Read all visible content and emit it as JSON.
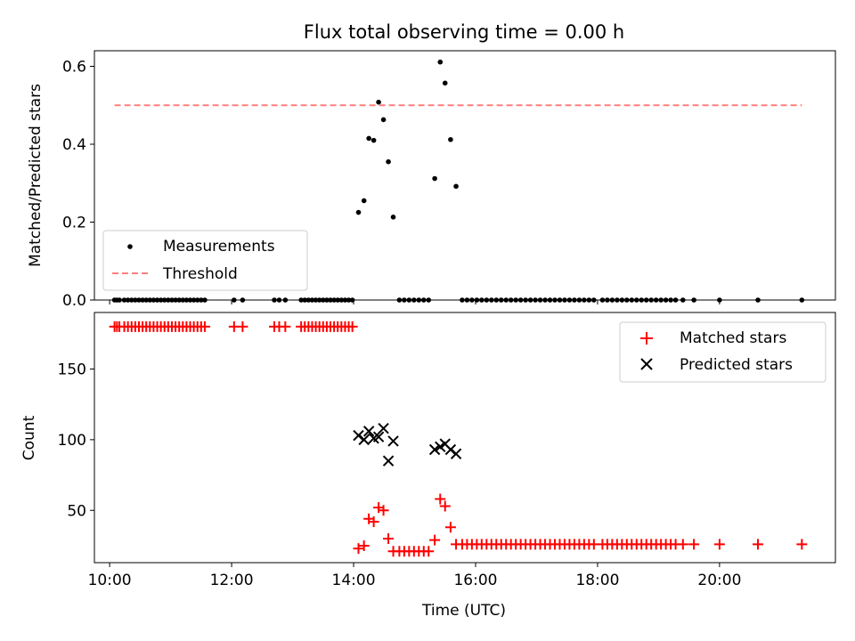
{
  "chart_data": [
    {
      "type": "scatter",
      "title": "Flux total observing time = 0.00 h",
      "xlabel": "",
      "ylabel": "Matched/Predicted stars",
      "xlim": [
        9.75,
        21.9
      ],
      "ylim": [
        0,
        0.64
      ],
      "yticks": [
        0.0,
        0.2,
        0.4,
        0.6
      ],
      "ytick_labels": [
        "0.0",
        "0.2",
        "0.4",
        "0.6"
      ],
      "legend_position": "lower-left",
      "series": [
        {
          "name": "Measurements",
          "kind": "scatter",
          "color": "#000000",
          "marker": "dot",
          "x": [
            10.08,
            10.12,
            10.16,
            10.24,
            10.3,
            10.36,
            10.42,
            10.48,
            10.54,
            10.6,
            10.66,
            10.72,
            10.78,
            10.84,
            10.9,
            10.96,
            11.02,
            11.08,
            11.14,
            11.2,
            11.26,
            11.32,
            11.38,
            11.44,
            11.5,
            11.56,
            12.04,
            12.18,
            12.7,
            12.78,
            12.88,
            13.14,
            13.2,
            13.26,
            13.32,
            13.38,
            13.44,
            13.5,
            13.56,
            13.62,
            13.68,
            13.74,
            13.8,
            13.86,
            13.92,
            13.98,
            14.08,
            14.17,
            14.25,
            14.33,
            14.41,
            14.49,
            14.57,
            14.65,
            14.75,
            14.83,
            14.91,
            14.99,
            15.07,
            15.15,
            15.23,
            15.33,
            15.42,
            15.5,
            15.59,
            15.68,
            15.78,
            15.86,
            15.94,
            16.02,
            16.1,
            16.18,
            16.26,
            16.34,
            16.42,
            16.5,
            16.58,
            16.66,
            16.74,
            16.82,
            16.9,
            16.98,
            17.06,
            17.14,
            17.22,
            17.3,
            17.38,
            17.46,
            17.54,
            17.62,
            17.7,
            17.78,
            17.86,
            17.94,
            18.08,
            18.16,
            18.24,
            18.32,
            18.4,
            18.48,
            18.56,
            18.64,
            18.72,
            18.8,
            18.88,
            18.96,
            19.04,
            19.12,
            19.2,
            19.28,
            19.4,
            19.58,
            20.0,
            20.63,
            21.35
          ],
          "y": [
            0,
            0,
            0,
            0,
            0,
            0,
            0,
            0,
            0,
            0,
            0,
            0,
            0,
            0,
            0,
            0,
            0,
            0,
            0,
            0,
            0,
            0,
            0,
            0,
            0,
            0,
            0,
            0,
            0,
            0,
            0,
            0,
            0,
            0,
            0,
            0,
            0,
            0,
            0,
            0,
            0,
            0,
            0,
            0,
            0,
            0,
            0.225,
            0.255,
            0.415,
            0.41,
            0.508,
            0.463,
            0.355,
            0.213,
            0,
            0,
            0,
            0,
            0,
            0,
            0,
            0.312,
            0.611,
            0.557,
            0.412,
            0.292,
            0,
            0,
            0,
            0,
            0,
            0,
            0,
            0,
            0,
            0,
            0,
            0,
            0,
            0,
            0,
            0,
            0,
            0,
            0,
            0,
            0,
            0,
            0,
            0,
            0,
            0,
            0,
            0,
            0,
            0,
            0,
            0,
            0,
            0,
            0,
            0,
            0,
            0,
            0,
            0,
            0,
            0,
            0,
            0,
            0,
            0,
            0,
            0,
            0
          ]
        },
        {
          "name": "Threshold",
          "kind": "line",
          "color": "#ff7f7f",
          "dashed": true,
          "x": [
            10.08,
            21.35
          ],
          "y": [
            0.5,
            0.5
          ]
        }
      ]
    },
    {
      "type": "scatter",
      "title": "",
      "xlabel": "Time (UTC)",
      "ylabel": "Count",
      "xlim": [
        9.75,
        21.9
      ],
      "ylim": [
        13,
        190
      ],
      "xticks": [
        10,
        12,
        14,
        16,
        18,
        20
      ],
      "xtick_labels": [
        "10:00",
        "12:00",
        "14:00",
        "16:00",
        "18:00",
        "20:00"
      ],
      "yticks": [
        50,
        100,
        150
      ],
      "ytick_labels": [
        "50",
        "100",
        "150"
      ],
      "legend_position": "top-right",
      "series": [
        {
          "name": "Matched stars",
          "kind": "scatter",
          "color": "#ff0000",
          "marker": "plus",
          "x": [
            10.08,
            10.12,
            10.16,
            10.24,
            10.3,
            10.36,
            10.42,
            10.48,
            10.54,
            10.6,
            10.66,
            10.72,
            10.78,
            10.84,
            10.9,
            10.96,
            11.02,
            11.08,
            11.14,
            11.2,
            11.26,
            11.32,
            11.38,
            11.44,
            11.5,
            11.56,
            12.04,
            12.18,
            12.7,
            12.78,
            12.88,
            13.14,
            13.2,
            13.26,
            13.32,
            13.38,
            13.44,
            13.5,
            13.56,
            13.62,
            13.68,
            13.74,
            13.8,
            13.86,
            13.92,
            13.98,
            14.08,
            14.17,
            14.25,
            14.33,
            14.41,
            14.49,
            14.57,
            14.65,
            14.75,
            14.83,
            14.91,
            14.99,
            15.07,
            15.15,
            15.23,
            15.33,
            15.42,
            15.5,
            15.59,
            15.68,
            15.78,
            15.86,
            15.94,
            16.02,
            16.1,
            16.18,
            16.26,
            16.34,
            16.42,
            16.5,
            16.58,
            16.66,
            16.74,
            16.82,
            16.9,
            16.98,
            17.06,
            17.14,
            17.22,
            17.3,
            17.38,
            17.46,
            17.54,
            17.62,
            17.7,
            17.78,
            17.86,
            17.94,
            18.08,
            18.16,
            18.24,
            18.32,
            18.4,
            18.48,
            18.56,
            18.64,
            18.72,
            18.8,
            18.88,
            18.96,
            19.04,
            19.12,
            19.2,
            19.28,
            19.4,
            19.58,
            20.0,
            20.63,
            21.35
          ],
          "y": [
            180,
            180,
            180,
            180,
            180,
            180,
            180,
            180,
            180,
            180,
            180,
            180,
            180,
            180,
            180,
            180,
            180,
            180,
            180,
            180,
            180,
            180,
            180,
            180,
            180,
            180,
            180,
            180,
            180,
            180,
            180,
            180,
            180,
            180,
            180,
            180,
            180,
            180,
            180,
            180,
            180,
            180,
            180,
            180,
            180,
            180,
            23,
            25,
            44,
            42,
            52,
            50,
            30,
            21,
            21,
            21,
            21,
            21,
            21,
            21,
            21,
            29,
            58,
            53,
            38,
            26,
            26,
            26,
            26,
            26,
            26,
            26,
            26,
            26,
            26,
            26,
            26,
            26,
            26,
            26,
            26,
            26,
            26,
            26,
            26,
            26,
            26,
            26,
            26,
            26,
            26,
            26,
            26,
            26,
            26,
            26,
            26,
            26,
            26,
            26,
            26,
            26,
            26,
            26,
            26,
            26,
            26,
            26,
            26,
            26,
            26,
            26,
            26,
            26,
            26
          ]
        },
        {
          "name": "Predicted stars",
          "kind": "scatter",
          "color": "#000000",
          "marker": "x",
          "x": [
            14.08,
            14.17,
            14.25,
            14.33,
            14.41,
            14.49,
            14.57,
            14.65,
            15.33,
            15.42,
            15.5,
            15.59,
            15.68
          ],
          "y": [
            103,
            100,
            106,
            101,
            102,
            108,
            85,
            99,
            93,
            95,
            97,
            93,
            90
          ]
        }
      ]
    }
  ]
}
